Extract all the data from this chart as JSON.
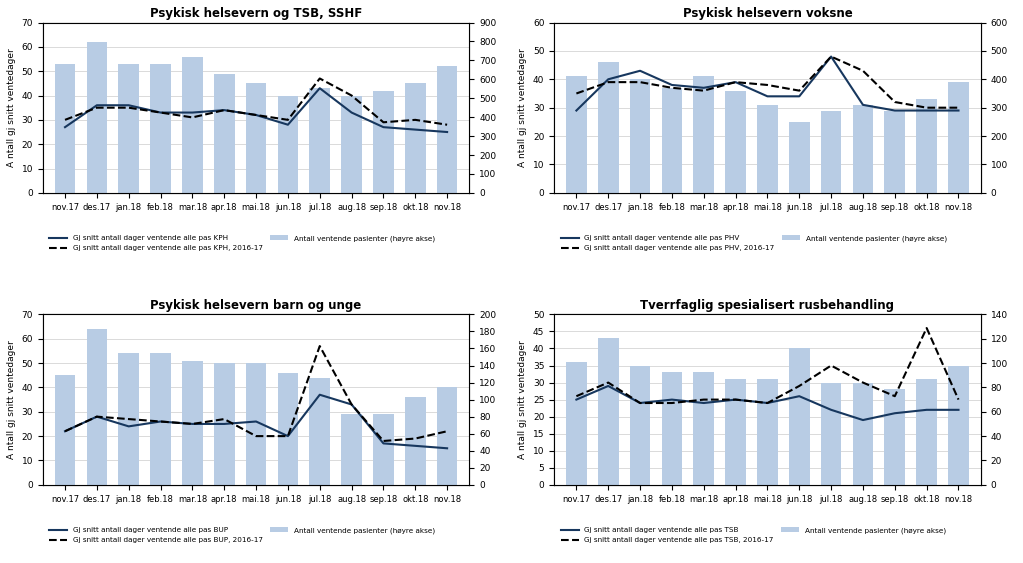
{
  "months": [
    "nov.17",
    "des.17",
    "jan.18",
    "feb.18",
    "mar.18",
    "apr.18",
    "mai.18",
    "jun.18",
    "jul.18",
    "aug.18",
    "sep.18",
    "okt.18",
    "nov.18"
  ],
  "charts": [
    {
      "title": "Psykisk helsevern og TSB, SSHF",
      "bars": [
        53,
        62,
        53,
        53,
        56,
        49,
        45,
        40,
        43,
        40,
        42,
        45,
        52
      ],
      "line_solid": [
        27,
        36,
        36,
        33,
        33,
        34,
        32,
        28,
        43,
        33,
        27,
        26,
        25
      ],
      "line_dashed": [
        30,
        35,
        35,
        33,
        31,
        34,
        32,
        30,
        47,
        40,
        29,
        30,
        28
      ],
      "ylim_left": [
        0,
        70
      ],
      "ylim_right": [
        0,
        900
      ],
      "yticks_left": [
        0,
        10,
        20,
        30,
        40,
        50,
        60,
        70
      ],
      "yticks_right": [
        0,
        100,
        200,
        300,
        400,
        500,
        600,
        700,
        800,
        900
      ],
      "legend_line": "Gj snitt antall dager ventende alle pas KPH",
      "legend_dashed": "Gj snitt antall dager ventende alle pas KPH, 2016-17"
    },
    {
      "title": "Psykisk helsevern voksne",
      "bars": [
        41,
        46,
        40,
        37,
        41,
        36,
        31,
        25,
        29,
        31,
        29,
        33,
        39
      ],
      "line_solid": [
        29,
        40,
        43,
        38,
        37,
        39,
        34,
        34,
        48,
        31,
        29,
        29,
        29
      ],
      "line_dashed": [
        35,
        39,
        39,
        37,
        36,
        39,
        38,
        36,
        48,
        43,
        32,
        30,
        30
      ],
      "ylim_left": [
        0,
        60
      ],
      "ylim_right": [
        0,
        600
      ],
      "yticks_left": [
        0,
        10,
        20,
        30,
        40,
        50,
        60
      ],
      "yticks_right": [
        0,
        100,
        200,
        300,
        400,
        500,
        600
      ],
      "legend_line": "Gj snitt antall dager ventende alle pas PHV",
      "legend_dashed": "Gj snitt antall dager ventende alle pas PHV, 2016-17"
    },
    {
      "title": "Psykisk helsevern barn og unge",
      "bars": [
        45,
        64,
        54,
        54,
        51,
        50,
        50,
        46,
        44,
        29,
        29,
        36,
        40
      ],
      "line_solid": [
        22,
        28,
        24,
        26,
        25,
        25,
        26,
        20,
        37,
        33,
        17,
        16,
        15
      ],
      "line_dashed": [
        22,
        28,
        27,
        26,
        25,
        27,
        20,
        20,
        57,
        33,
        18,
        19,
        22
      ],
      "ylim_left": [
        0,
        70
      ],
      "ylim_right": [
        0,
        200
      ],
      "yticks_left": [
        0,
        10,
        20,
        30,
        40,
        50,
        60,
        70
      ],
      "yticks_right": [
        0,
        20,
        40,
        60,
        80,
        100,
        120,
        140,
        160,
        180,
        200
      ],
      "legend_line": "Gj snitt antall dager ventende alle pas BUP",
      "legend_dashed": "Gj snitt antall dager ventende alle pas BUP, 2016-17"
    },
    {
      "title": "Tverrfaglig spesialisert rusbehandling",
      "bars": [
        36,
        43,
        35,
        33,
        33,
        31,
        31,
        40,
        30,
        30,
        28,
        31,
        35
      ],
      "line_solid": [
        25,
        29,
        24,
        25,
        24,
        25,
        24,
        26,
        22,
        19,
        21,
        22,
        22
      ],
      "line_dashed": [
        26,
        30,
        24,
        24,
        25,
        25,
        24,
        29,
        35,
        30,
        26,
        46,
        25
      ],
      "ylim_left": [
        0,
        50
      ],
      "ylim_right": [
        0,
        140
      ],
      "yticks_left": [
        0,
        5,
        10,
        15,
        20,
        25,
        30,
        35,
        40,
        45,
        50
      ],
      "yticks_right": [
        0,
        20,
        40,
        60,
        80,
        100,
        120,
        140
      ],
      "legend_line": "Gj snitt antall dager ventende alle pas TSB",
      "legend_dashed": "Gj snitt antall dager ventende alle pas TSB, 2016-17"
    }
  ],
  "bar_color": "#b8cce4",
  "line_color": "#17375e",
  "ylabel": "A ntall gj snitt ventedager",
  "legend_bar": "Antall ventende pasienter (høyre akse)",
  "bg_color": "#ffffff"
}
